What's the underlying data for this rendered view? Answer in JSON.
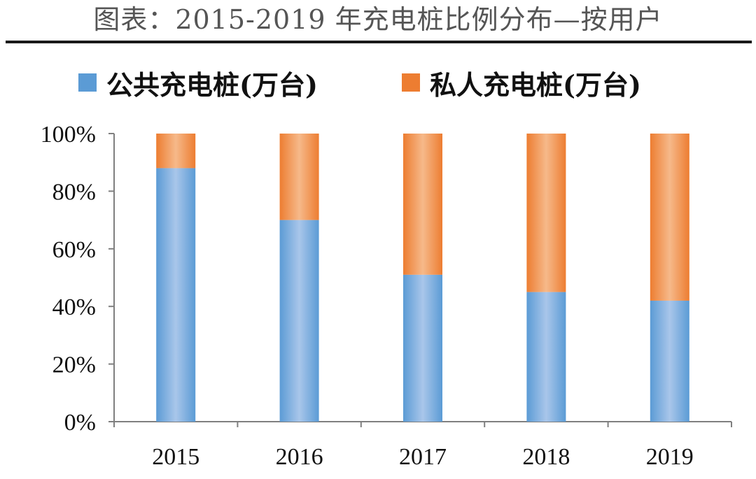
{
  "header": {
    "title": "图表：2015-2019 年充电桩比例分布—按用户"
  },
  "colors": {
    "public": "#5b9bd5",
    "public_light": "#a9c6ea",
    "private": "#ed7d31",
    "private_light": "#f6b98a",
    "axis": "#7f7f7f"
  },
  "chart_data": {
    "type": "bar",
    "stacked": "percent",
    "title": "图表：2015-2019 年充电桩比例分布—按用户",
    "categories": [
      "2015",
      "2016",
      "2017",
      "2018",
      "2019"
    ],
    "series": [
      {
        "name": "公共充电桩(万台)",
        "values": [
          88,
          70,
          51,
          45,
          42
        ]
      },
      {
        "name": "私人充电桩(万台)",
        "values": [
          12,
          30,
          49,
          55,
          58
        ]
      }
    ],
    "ylim": [
      0,
      100
    ],
    "ytick_labels": [
      "0%",
      "20%",
      "40%",
      "60%",
      "80%",
      "100%"
    ],
    "grid": false,
    "legend_position": "top"
  }
}
